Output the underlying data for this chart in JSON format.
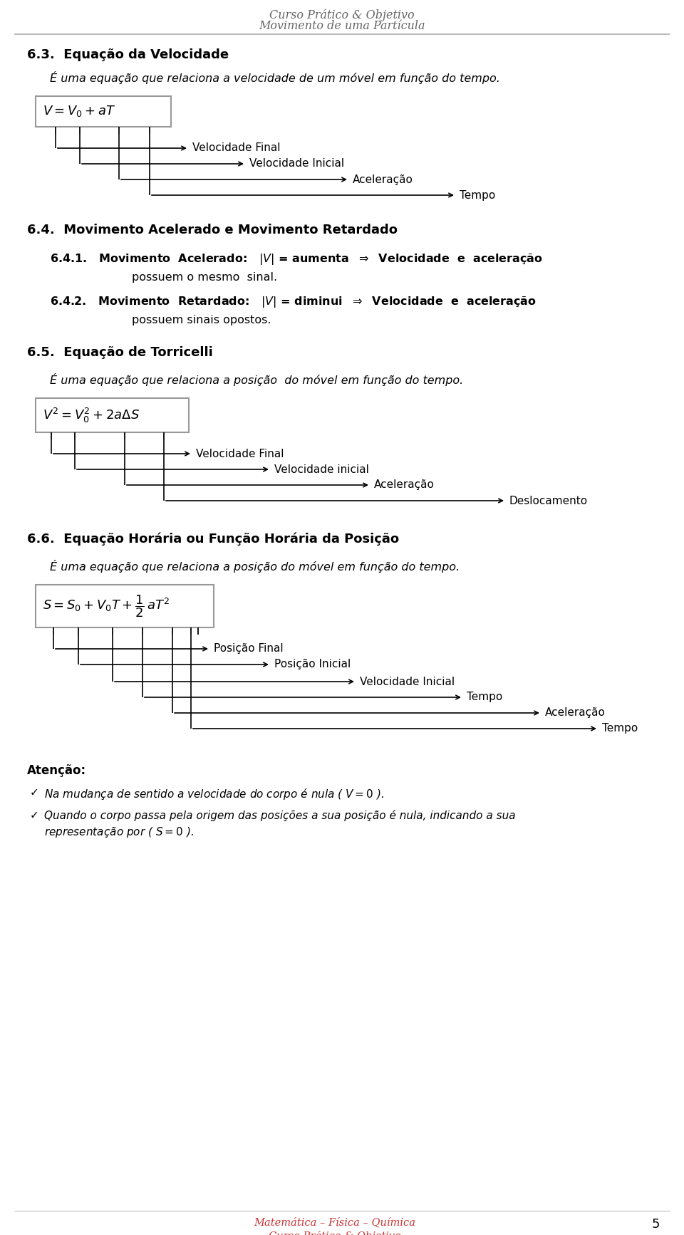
{
  "header_line1": "Curso Prático & Objetivo",
  "header_line2": "Movimento de uma Partícula",
  "header_color": "#666666",
  "footer_line1": "Matemática – Física – Química",
  "footer_line2": "Curso Prático & Objetivo",
  "footer_color": "#cc3333",
  "page_number": "5",
  "bg_color": "#ffffff",
  "section_63_title": "6.3.  Equação da Velocidade",
  "section_63_body": "É uma equação que relaciona a velocidade de um móvel em função do tempo.",
  "eq1_formula": "$V = V_0 + aT$",
  "eq1_labels": [
    "Velocidade Final",
    "Velocidade Inicial",
    "Aceleração",
    "Tempo"
  ],
  "section_64_title": "6.4.  Movimento Acelerado e Movimento Retardado",
  "section_641": "6.4.1.   Movimento  Acelerado:   $|V|$ = aumenta  $\\Rightarrow$  Velocidade  e  aceleração",
  "section_641_cont": "possuem o mesmo  sinal.",
  "section_642": "6.4.2.   Movimento  Retardado:   $|V|$ = diminui  $\\Rightarrow$  Velocidade  e  aceleração",
  "section_642_cont": "possuem sinais opostos.",
  "section_65_title": "6.5.  Equação de Torricelli",
  "section_65_body": "É uma equação que relaciona a posição  do móvel em função do tempo.",
  "eq2_formula": "$V^2 = V_0^2 + 2a\\Delta S$",
  "eq2_labels": [
    "Velocidade Final",
    "Velocidade inicial",
    "Aceleração",
    "Deslocamento"
  ],
  "section_66_title": "6.6.  Equação Horária ou Função Horária da Posição",
  "section_66_body": "É uma equação que relaciona a posição do móvel em função do tempo.",
  "eq3_formula": "$S = S_0 + V_0T + \\dfrac{1}{2}\\,aT^2$",
  "eq3_labels": [
    "Posição Final",
    "Posição Inicial",
    "Velocidade Inicial",
    "Tempo",
    "Aceleração",
    "Tempo"
  ],
  "atencao_title": "Atenção:",
  "atencao_item1": "Na mudança de sentido a velocidade do corpo é nula ( $V = 0$ ).",
  "atencao_item2a": "Quando o corpo passa pela origem das posições a sua posição é nula, indicando a sua",
  "atencao_item2b": "representação por ( $S = 0$ )."
}
